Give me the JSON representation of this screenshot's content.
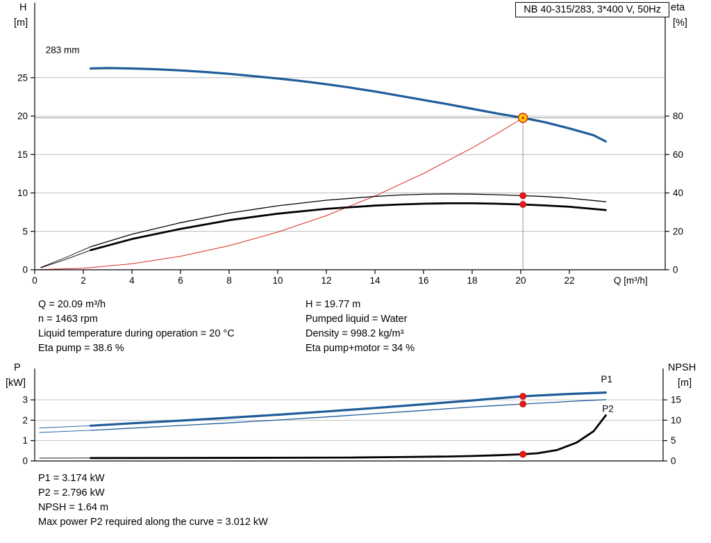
{
  "title_box": "NB 40-315/283, 3*400 V, 50Hz",
  "axis_corner_labels": {
    "top_left_line1": "H",
    "top_left_line2": "[m]",
    "top_right_line1": "eta",
    "top_right_line2": "[%]",
    "bottom_left_line1": "P",
    "bottom_left_line2": "[kW]",
    "bottom_right_line1": "NPSH",
    "bottom_right_line2": "[m]"
  },
  "info_block": {
    "left": [
      "Q = 20.09 m³/h",
      "n = 1463 rpm",
      "Liquid temperature during operation = 20 °C",
      "Eta pump = 38.6 %"
    ],
    "right": [
      "H = 19.77 m",
      "Pumped liquid = Water",
      "Density = 998.2 kg/m³",
      "Eta pump+motor = 34 %"
    ]
  },
  "result_block": [
    "P1 = 3.174 kW",
    "P2 = 2.796 kW",
    "NPSH = 1.64 m",
    "Max power P2 required along the curve = 3.012 kW"
  ],
  "colors": {
    "curve_blue": "#1f5c99",
    "label_blue": "#4477bb",
    "red": "#d92b1f",
    "dot_red": "#f21515",
    "marker_yellow": "#ffd100",
    "grid": "#bbbbbb",
    "crosshair": "#8c8c8c",
    "axis": "#000000"
  },
  "chart_data": [
    {
      "type": "line",
      "id": "head",
      "x": {
        "label": "Q [m³/h]",
        "ticks": [
          0,
          2,
          4,
          6,
          8,
          10,
          12,
          14,
          16,
          18,
          20,
          22
        ],
        "range": [
          0,
          25.94
        ]
      },
      "y_left": {
        "label": "H [m]",
        "ticks": [
          0,
          5,
          10,
          15,
          20,
          25
        ],
        "range": [
          0,
          34.66
        ]
      },
      "right_axis": {
        "label": "eta [%]",
        "ticks": [
          0,
          20,
          40,
          60,
          80
        ],
        "factor": 0.25
      },
      "crosshair": {
        "q": 20.09,
        "h": 19.77
      },
      "series": [
        {
          "name": "system-curve",
          "color": "#d92b1f",
          "width": 1,
          "axis": "left",
          "points": [
            [
              0,
              0
            ],
            [
              2,
              0.2
            ],
            [
              4,
              0.78
            ],
            [
              6,
              1.76
            ],
            [
              8,
              3.13
            ],
            [
              10,
              4.9
            ],
            [
              12,
              7.05
            ],
            [
              14,
              9.6
            ],
            [
              16,
              12.53
            ],
            [
              18,
              15.86
            ],
            [
              19,
              17.67
            ],
            [
              20.09,
              19.77
            ]
          ]
        },
        {
          "name": "eta-pump-lead",
          "color": "#000000",
          "width": 0.9,
          "axis": "right",
          "points": [
            [
              0.25,
              1.2
            ],
            [
              1.3,
              6.5
            ],
            [
              2.3,
              12
            ]
          ]
        },
        {
          "name": "eta-pump-motor-lead",
          "color": "#0000 00",
          "width": 0.9,
          "axis": "right",
          "points": [
            [
              0.25,
              1.0
            ],
            [
              1.3,
              5.5
            ],
            [
              2.3,
              10.2
            ]
          ]
        },
        {
          "name": "eta-pump",
          "color": "#000000",
          "width": 1.3,
          "axis": "right",
          "points": [
            [
              2.3,
              12
            ],
            [
              4,
              18.5
            ],
            [
              6,
              24.5
            ],
            [
              8,
              29.5
            ],
            [
              10,
              33.3
            ],
            [
              12,
              36.2
            ],
            [
              14,
              38.2
            ],
            [
              15,
              38.9
            ],
            [
              16,
              39.3
            ],
            [
              17,
              39.5
            ],
            [
              18,
              39.4
            ],
            [
              19,
              39.1
            ],
            [
              20.09,
              38.6
            ],
            [
              21,
              38.1
            ],
            [
              22,
              37.3
            ],
            [
              23.5,
              35.4
            ]
          ]
        },
        {
          "name": "eta-pump-motor",
          "color": "#000000",
          "width": 2.8,
          "axis": "right",
          "points": [
            [
              2.3,
              10.2
            ],
            [
              4,
              16
            ],
            [
              6,
              21.3
            ],
            [
              8,
              25.8
            ],
            [
              10,
              29.2
            ],
            [
              12,
              31.7
            ],
            [
              14,
              33.4
            ],
            [
              15,
              34
            ],
            [
              16,
              34.4
            ],
            [
              17,
              34.6
            ],
            [
              18,
              34.6
            ],
            [
              19,
              34.4
            ],
            [
              20.09,
              34
            ],
            [
              21,
              33.5
            ],
            [
              22,
              32.8
            ],
            [
              23.5,
              31.1
            ]
          ]
        },
        {
          "name": "head-curve-283mm",
          "color": "#1f5c99",
          "width": 3.2,
          "axis": "left",
          "points": [
            [
              2.3,
              26.2
            ],
            [
              3,
              26.25
            ],
            [
              4,
              26.2
            ],
            [
              5,
              26.1
            ],
            [
              6,
              25.95
            ],
            [
              7,
              25.75
            ],
            [
              8,
              25.5
            ],
            [
              9,
              25.2
            ],
            [
              10,
              24.9
            ],
            [
              11,
              24.55
            ],
            [
              12,
              24.15
            ],
            [
              13,
              23.7
            ],
            [
              14,
              23.2
            ],
            [
              15,
              22.65
            ],
            [
              16,
              22.1
            ],
            [
              17,
              21.55
            ],
            [
              18,
              20.95
            ],
            [
              19,
              20.35
            ],
            [
              20.09,
              19.77
            ],
            [
              21,
              19.2
            ],
            [
              22,
              18.4
            ],
            [
              23,
              17.5
            ],
            [
              23.5,
              16.7
            ]
          ]
        }
      ],
      "markers": [
        {
          "x": 20.09,
          "value": 19.77,
          "axis": "left",
          "style": "duty"
        },
        {
          "x": 20.09,
          "value": 38.6,
          "axis": "right",
          "style": "dot"
        },
        {
          "x": 20.09,
          "value": 34,
          "axis": "right",
          "style": "dot"
        }
      ],
      "labels": [
        {
          "text": "283 mm",
          "x": 0.45,
          "y": 28.2,
          "axis": "left",
          "color": "#000000"
        }
      ]
    },
    {
      "type": "line",
      "id": "power",
      "x": {
        "label": "",
        "ticks": [],
        "range": [
          0,
          25.86
        ]
      },
      "y_left": {
        "label": "P [kW]",
        "ticks": [
          0,
          1,
          2,
          3
        ],
        "range": [
          0,
          4.54
        ]
      },
      "right_axis": {
        "label": "NPSH [m]",
        "ticks": [
          0,
          5,
          10,
          15
        ],
        "factor": 0.2
      },
      "series": [
        {
          "name": "p1-lead",
          "color": "#1f5c99",
          "width": 0.9,
          "axis": "left",
          "points": [
            [
              0.2,
              1.62
            ],
            [
              2.3,
              1.73
            ]
          ]
        },
        {
          "name": "p2-lead",
          "color": "#1f5c99",
          "width": 0.9,
          "axis": "left",
          "points": [
            [
              0.2,
              1.4
            ],
            [
              2.3,
              1.5
            ]
          ]
        },
        {
          "name": "npsh-lead",
          "color": "#000000",
          "width": 0.9,
          "axis": "right",
          "points": [
            [
              0.2,
              0.7
            ],
            [
              2.3,
              0.72
            ]
          ]
        },
        {
          "name": "p1-curve",
          "color": "#1f5c99",
          "width": 3.2,
          "axis": "left",
          "points": [
            [
              2.3,
              1.73
            ],
            [
              4,
              1.85
            ],
            [
              6,
              1.98
            ],
            [
              8,
              2.12
            ],
            [
              10,
              2.27
            ],
            [
              12,
              2.43
            ],
            [
              14,
              2.6
            ],
            [
              16,
              2.78
            ],
            [
              18,
              2.97
            ],
            [
              19,
              3.07
            ],
            [
              20.09,
              3.174
            ],
            [
              21,
              3.23
            ],
            [
              22,
              3.29
            ],
            [
              23.5,
              3.36
            ]
          ]
        },
        {
          "name": "p2-curve",
          "color": "#1f5c99",
          "width": 1.3,
          "axis": "left",
          "points": [
            [
              2.3,
              1.5
            ],
            [
              4,
              1.61
            ],
            [
              6,
              1.74
            ],
            [
              8,
              1.87
            ],
            [
              10,
              2.01
            ],
            [
              12,
              2.16
            ],
            [
              14,
              2.32
            ],
            [
              16,
              2.48
            ],
            [
              18,
              2.65
            ],
            [
              19,
              2.72
            ],
            [
              20.09,
              2.796
            ],
            [
              21,
              2.85
            ],
            [
              22,
              2.92
            ],
            [
              23.5,
              3.01
            ]
          ]
        },
        {
          "name": "npsh-curve",
          "color": "#000000",
          "width": 2.8,
          "axis": "right",
          "points": [
            [
              2.3,
              0.72
            ],
            [
              6,
              0.74
            ],
            [
              10,
              0.78
            ],
            [
              13,
              0.84
            ],
            [
              15,
              0.95
            ],
            [
              17,
              1.1
            ],
            [
              18,
              1.22
            ],
            [
              19,
              1.4
            ],
            [
              20.09,
              1.64
            ],
            [
              20.7,
              1.9
            ],
            [
              21.5,
              2.7
            ],
            [
              22.3,
              4.5
            ],
            [
              23,
              7.3
            ],
            [
              23.5,
              11.2
            ]
          ]
        }
      ],
      "markers": [
        {
          "x": 20.09,
          "value": 3.174,
          "axis": "left",
          "style": "dot"
        },
        {
          "x": 20.09,
          "value": 2.796,
          "axis": "left",
          "style": "dot"
        },
        {
          "x": 20.09,
          "value": 1.64,
          "axis": "right",
          "style": "dot"
        }
      ],
      "labels": [
        {
          "text": "P1",
          "x": 23.3,
          "y": 3.85,
          "axis": "left",
          "color": "#4477bb",
          "size": 14.5
        },
        {
          "text": "P2",
          "x": 23.35,
          "y": 2.4,
          "axis": "left",
          "color": "#4477bb",
          "size": 14.5
        }
      ]
    }
  ]
}
